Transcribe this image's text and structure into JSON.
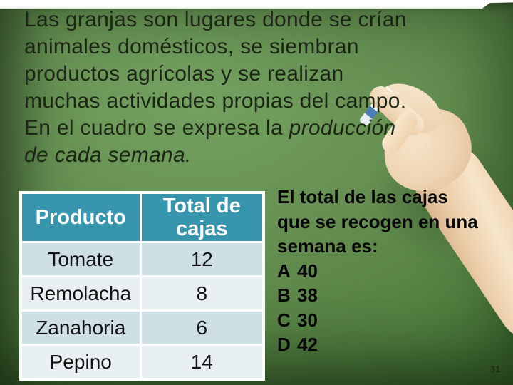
{
  "colors": {
    "board_green_light": "#74a261",
    "board_green_dark": "#2e5a24",
    "table_header_bg": "#3795ae",
    "table_header_text": "#ffffff",
    "table_row_odd_bg": "#cfdfe6",
    "table_row_even_bg": "#e9f0f2",
    "paragraph_text": "#1d2616",
    "question_text": "#060606",
    "skin_tone": "#eed4b2",
    "chalk_blue_tip": "#4d80b8"
  },
  "paragraph": {
    "lines": [
      {
        "regular": "Las granjas son lugares donde se crían"
      },
      {
        "regular": "animales domésticos, se siembran"
      },
      {
        "regular": "productos agrícolas y se realizan"
      },
      {
        "regular": "muchas actividades propias del campo."
      },
      {
        "regular": "En el cuadro se expresa la ",
        "italic": "producción"
      },
      {
        "italic": "de cada semana."
      }
    ]
  },
  "table": {
    "headers": [
      "Producto",
      "Total de cajas"
    ],
    "rows": [
      [
        "Tomate",
        "12"
      ],
      [
        "Remolacha",
        "8"
      ],
      [
        "Zanahoria",
        "6"
      ],
      [
        "Pepino",
        "14"
      ]
    ]
  },
  "question": {
    "prompt_lines": [
      "El total de las cajas",
      "que se recogen en una",
      "semana es:"
    ],
    "options": [
      {
        "letter": "A",
        "value": "40"
      },
      {
        "letter": "B",
        "value": "38"
      },
      {
        "letter": "C",
        "value": "30"
      },
      {
        "letter": "D",
        "value": "42"
      }
    ]
  },
  "page_number": "31"
}
